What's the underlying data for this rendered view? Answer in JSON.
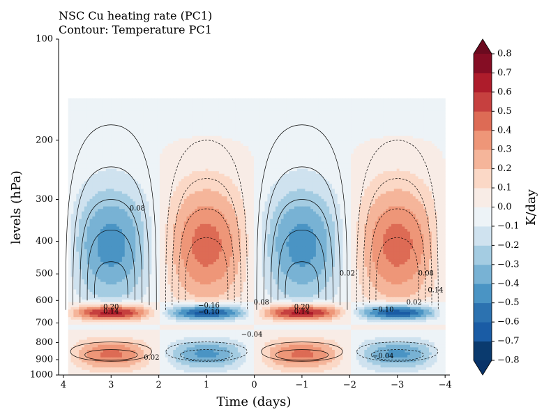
{
  "chart_data": {
    "type": "heatmap",
    "title": "NSC Cu heating rate (PC1)",
    "subtitle": "Contour: Temperature PC1",
    "xlabel": "Time (days)",
    "ylabel": "levels (hPa)",
    "x_ticks": [
      "4",
      "3",
      "2",
      "1",
      "0",
      "−1",
      "−2",
      "−3",
      "−4"
    ],
    "x_tick_values": [
      4,
      3,
      2,
      1,
      0,
      -1,
      -2,
      -3,
      -4
    ],
    "xlim": [
      4.1,
      -4.1
    ],
    "y_ticks": [
      "100",
      "200",
      "300",
      "400",
      "500",
      "600",
      "700",
      "800",
      "900",
      "1000"
    ],
    "y_tick_values": [
      100,
      200,
      300,
      400,
      500,
      600,
      700,
      800,
      900,
      1000
    ],
    "ylim": [
      1000,
      100
    ],
    "y_scale": "log",
    "grid": false,
    "colorbar": {
      "label": "K/day",
      "tick_labels": [
        "−0.8",
        "−0.7",
        "−0.6",
        "−0.5",
        "−0.4",
        "−0.3",
        "−0.2",
        "−0.1",
        "0.0",
        "0.1",
        "0.2",
        "0.3",
        "0.4",
        "0.5",
        "0.6",
        "0.7",
        "0.8"
      ],
      "tick_values": [
        -0.8,
        -0.7,
        -0.6,
        -0.5,
        -0.4,
        -0.3,
        -0.2,
        -0.1,
        0.0,
        0.1,
        0.2,
        0.3,
        0.4,
        0.5,
        0.6,
        0.7,
        0.8
      ],
      "extend": "both",
      "colors": [
        "#0a3a6e",
        "#1a5ca5",
        "#2c72b0",
        "#4a94c4",
        "#78b2d4",
        "#a4cce2",
        "#cfe2ef",
        "#edf3f7",
        "#f8ece6",
        "#fbd8c6",
        "#f5b59a",
        "#ee9678",
        "#dd6b55",
        "#c6403f",
        "#ae1c2b",
        "#850d24"
      ],
      "under_color": "#083268",
      "over_color": "#6b0a1f"
    },
    "contour_labels": [
      {
        "text": "0.20",
        "x": 3.0,
        "y": 628
      },
      {
        "text": "0.14",
        "x": 3.0,
        "y": 648
      },
      {
        "text": "0.08",
        "x": 2.45,
        "y": 320
      },
      {
        "text": "0.02",
        "x": 2.15,
        "y": 890
      },
      {
        "text": "−0.16",
        "x": 0.95,
        "y": 622
      },
      {
        "text": "−0.10",
        "x": 0.95,
        "y": 652
      },
      {
        "text": "−0.04",
        "x": 0.05,
        "y": 760
      },
      {
        "text": "0.08",
        "x": -0.15,
        "y": 610
      },
      {
        "text": "0.20",
        "x": -1.0,
        "y": 628
      },
      {
        "text": "0.14",
        "x": -1.0,
        "y": 648
      },
      {
        "text": "0.02",
        "x": -1.95,
        "y": 500
      },
      {
        "text": "−0.10",
        "x": -2.7,
        "y": 640
      },
      {
        "text": "−0.04",
        "x": -2.7,
        "y": 880
      },
      {
        "text": "0.02",
        "x": -3.35,
        "y": 610
      },
      {
        "text": "0.08",
        "x": -3.6,
        "y": 500
      },
      {
        "text": "0.14",
        "x": -3.8,
        "y": 560
      }
    ]
  }
}
